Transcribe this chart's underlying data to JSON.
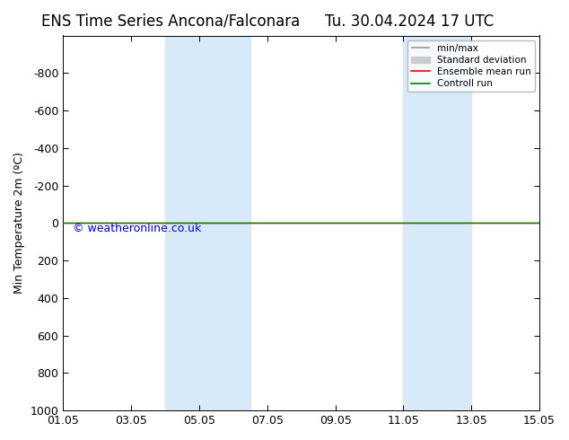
{
  "title_left": "ENS Time Series Ancona/Falconara",
  "title_right": "Tu. 30.04.2024 17 UTC",
  "ylabel": "Min Temperature 2m (ºC)",
  "ylim_top": -1000,
  "ylim_bottom": 1000,
  "yticks": [
    -800,
    -600,
    -400,
    -200,
    0,
    200,
    400,
    600,
    800,
    1000
  ],
  "xlim_left": 0,
  "xlim_right": 14,
  "xtick_labels": [
    "01.05",
    "03.05",
    "05.05",
    "07.05",
    "09.05",
    "11.05",
    "13.05",
    "15.05"
  ],
  "xtick_positions": [
    0,
    2,
    4,
    6,
    8,
    10,
    12,
    14
  ],
  "shaded_bands": [
    {
      "x_start": 3.0,
      "x_end": 5.5
    },
    {
      "x_start": 10.0,
      "x_end": 12.0
    }
  ],
  "band_color": "#d8eaf7",
  "control_run_y": 0.0,
  "ensemble_mean_y": 0.0,
  "control_run_color": "#008000",
  "ensemble_mean_color": "#ff0000",
  "minmax_color": "#999999",
  "stddev_color": "#cccccc",
  "watermark": "© weatheronline.co.uk",
  "watermark_color": "#0000cc",
  "legend_labels": [
    "min/max",
    "Standard deviation",
    "Ensemble mean run",
    "Controll run"
  ],
  "legend_colors": [
    "#999999",
    "#cccccc",
    "#ff0000",
    "#008000"
  ],
  "bg_color": "#ffffff",
  "font_size": 9,
  "title_font_size": 12
}
